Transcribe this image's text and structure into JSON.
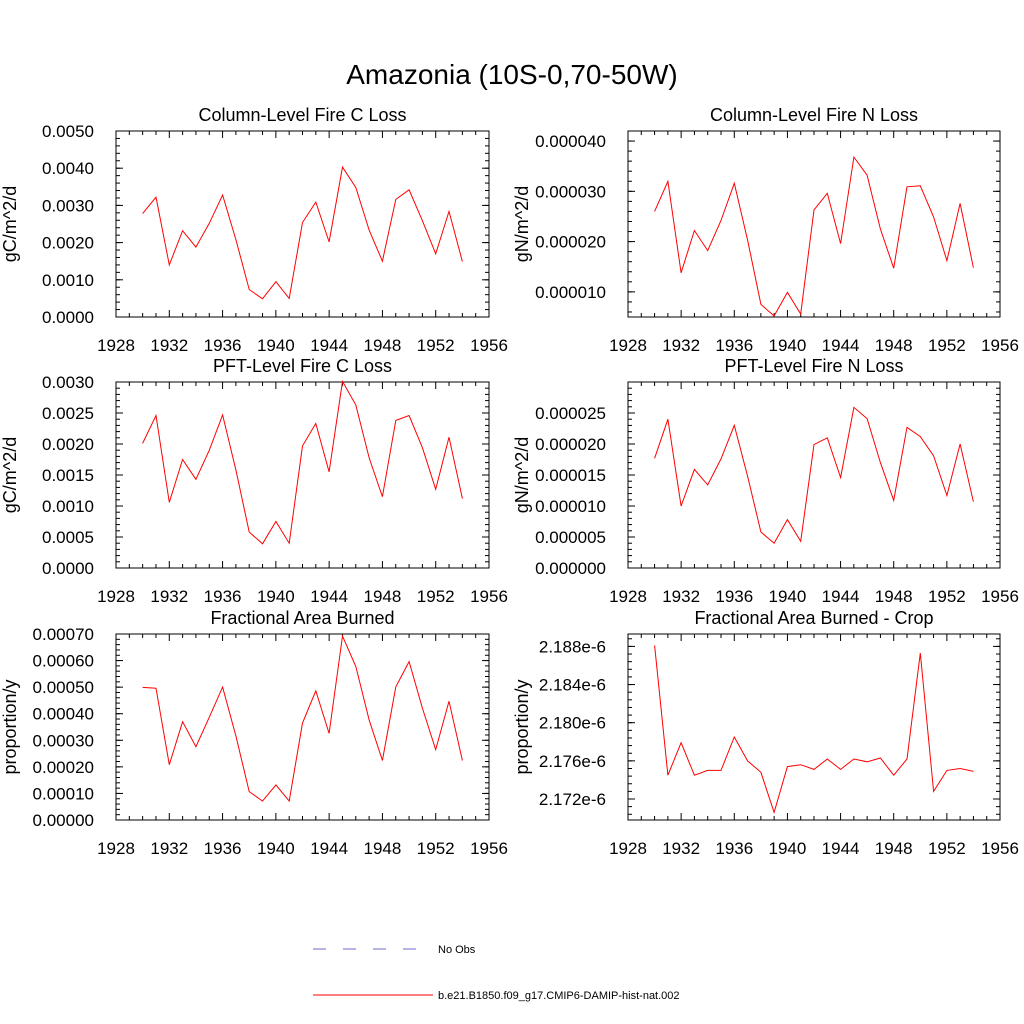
{
  "figure_title": "Amazonia (10S-0,70-50W)",
  "legend": [
    {
      "label": "No Obs",
      "color": "#6a6acd",
      "dash": true
    },
    {
      "label": "b.e21.B1850.f09_g17.CMIP6-DAMIP-hist-nat.002",
      "color": "#ff0000",
      "dash": false
    }
  ],
  "chart_data": [
    {
      "type": "line",
      "title": "Column-Level Fire C Loss",
      "ylabel": "gC/m^2/d",
      "xlim": [
        1928,
        1956
      ],
      "xticks": [
        1928,
        1932,
        1936,
        1940,
        1944,
        1948,
        1952,
        1956
      ],
      "ylim": [
        0,
        0.005
      ],
      "yticks": [
        "0.0000",
        "0.0010",
        "0.0020",
        "0.0030",
        "0.0040",
        "0.0050"
      ],
      "ytick_values": [
        0,
        0.001,
        0.002,
        0.003,
        0.004,
        0.005
      ],
      "series": [
        {
          "color": "#ff0000",
          "x": [
            1930,
            1931,
            1932,
            1933,
            1934,
            1935,
            1936,
            1937,
            1938,
            1939,
            1940,
            1941,
            1942,
            1943,
            1944,
            1945,
            1946,
            1947,
            1948,
            1949,
            1950,
            1951,
            1952,
            1953,
            1954
          ],
          "values": [
            0.00278,
            0.00322,
            0.0014,
            0.00232,
            0.00188,
            0.00252,
            0.00328,
            0.00208,
            0.00074,
            0.00049,
            0.00095,
            0.0005,
            0.00254,
            0.00309,
            0.00202,
            0.00403,
            0.00348,
            0.00234,
            0.0015,
            0.00316,
            0.00342,
            0.00259,
            0.0017,
            0.00284,
            0.00149
          ]
        }
      ]
    },
    {
      "type": "line",
      "title": "Column-Level Fire N Loss",
      "ylabel": "gN/m^2/d",
      "xlim": [
        1928,
        1956
      ],
      "xticks": [
        1928,
        1932,
        1936,
        1940,
        1944,
        1948,
        1952,
        1956
      ],
      "ylim": [
        5e-06,
        4.2e-05
      ],
      "yticks": [
        "0.000010",
        "0.000020",
        "0.000030",
        "0.000040"
      ],
      "ytick_values": [
        1e-05,
        2e-05,
        3e-05,
        4e-05
      ],
      "series": [
        {
          "color": "#ff0000",
          "x": [
            1930,
            1931,
            1932,
            1933,
            1934,
            1935,
            1936,
            1937,
            1938,
            1939,
            1940,
            1941,
            1942,
            1943,
            1944,
            1945,
            1946,
            1947,
            1948,
            1949,
            1950,
            1951,
            1952,
            1953,
            1954
          ],
          "values": [
            2.6e-05,
            3.2e-05,
            1.38e-05,
            2.22e-05,
            1.82e-05,
            2.42e-05,
            3.16e-05,
            2.03e-05,
            7.5e-06,
            5.2e-06,
            9.9e-06,
            5.6e-06,
            2.63e-05,
            2.96e-05,
            1.96e-05,
            3.68e-05,
            3.32e-05,
            2.25e-05,
            1.47e-05,
            3.09e-05,
            3.11e-05,
            2.49e-05,
            1.62e-05,
            2.76e-05,
            1.48e-05
          ]
        }
      ]
    },
    {
      "type": "line",
      "title": "PFT-Level Fire C Loss",
      "ylabel": "gC/m^2/d",
      "xlim": [
        1928,
        1956
      ],
      "xticks": [
        1928,
        1932,
        1936,
        1940,
        1944,
        1948,
        1952,
        1956
      ],
      "ylim": [
        0,
        0.003
      ],
      "yticks": [
        "0.0000",
        "0.0005",
        "0.0010",
        "0.0015",
        "0.0020",
        "0.0025",
        "0.0030"
      ],
      "ytick_values": [
        0,
        0.0005,
        0.001,
        0.0015,
        0.002,
        0.0025,
        0.003
      ],
      "series": [
        {
          "color": "#ff0000",
          "x": [
            1930,
            1931,
            1932,
            1933,
            1934,
            1935,
            1936,
            1937,
            1938,
            1939,
            1940,
            1941,
            1942,
            1943,
            1944,
            1945,
            1946,
            1947,
            1948,
            1949,
            1950,
            1951,
            1952,
            1953,
            1954
          ],
          "values": [
            0.00201,
            0.00246,
            0.00106,
            0.00175,
            0.00143,
            0.0019,
            0.00247,
            0.00158,
            0.00058,
            0.00039,
            0.00075,
            0.0004,
            0.00197,
            0.00233,
            0.00155,
            0.00301,
            0.00263,
            0.00178,
            0.00115,
            0.00238,
            0.00246,
            0.00194,
            0.00127,
            0.00211,
            0.00112
          ]
        }
      ]
    },
    {
      "type": "line",
      "title": "PFT-Level Fire N Loss",
      "ylabel": "gN/m^2/d",
      "xlim": [
        1928,
        1956
      ],
      "xticks": [
        1928,
        1932,
        1936,
        1940,
        1944,
        1948,
        1952,
        1956
      ],
      "ylim": [
        0,
        3e-05
      ],
      "yticks": [
        "0.000000",
        "0.000005",
        "0.000010",
        "0.000015",
        "0.000020",
        "0.000025"
      ],
      "ytick_values": [
        0,
        5e-06,
        1e-05,
        1.5e-05,
        2e-05,
        2.5e-05
      ],
      "series": [
        {
          "color": "#ff0000",
          "x": [
            1930,
            1931,
            1932,
            1933,
            1934,
            1935,
            1936,
            1937,
            1938,
            1939,
            1940,
            1941,
            1942,
            1943,
            1944,
            1945,
            1946,
            1947,
            1948,
            1949,
            1950,
            1951,
            1952,
            1953,
            1954
          ],
          "values": [
            1.77e-05,
            2.4e-05,
            1e-05,
            1.59e-05,
            1.34e-05,
            1.76e-05,
            2.3e-05,
            1.48e-05,
            5.8e-06,
            4e-06,
            7.8e-06,
            4.3e-06,
            1.99e-05,
            2.1e-05,
            1.46e-05,
            2.59e-05,
            2.41e-05,
            1.7e-05,
            1.09e-05,
            2.27e-05,
            2.12e-05,
            1.81e-05,
            1.17e-05,
            2e-05,
            1.07e-05
          ]
        }
      ]
    },
    {
      "type": "line",
      "title": "Fractional Area Burned",
      "ylabel": "proportion/y",
      "xlim": [
        1928,
        1956
      ],
      "xticks": [
        1928,
        1932,
        1936,
        1940,
        1944,
        1948,
        1952,
        1956
      ],
      "ylim": [
        0,
        0.0007
      ],
      "yticks": [
        "0.00000",
        "0.00010",
        "0.00020",
        "0.00030",
        "0.00040",
        "0.00050",
        "0.00060",
        "0.00070"
      ],
      "ytick_values": [
        0,
        0.0001,
        0.0002,
        0.0003,
        0.0004,
        0.0005,
        0.0006,
        0.0007
      ],
      "series": [
        {
          "color": "#ff0000",
          "x": [
            1930,
            1931,
            1932,
            1933,
            1934,
            1935,
            1936,
            1937,
            1938,
            1939,
            1940,
            1941,
            1942,
            1943,
            1944,
            1945,
            1946,
            1947,
            1948,
            1949,
            1950,
            1951,
            1952,
            1953,
            1954
          ],
          "values": [
            0.000499,
            0.000496,
            0.000208,
            0.00037,
            0.000276,
            0.000387,
            0.0005,
            0.000316,
            0.000107,
            7.1e-05,
            0.000132,
            7.1e-05,
            0.000365,
            0.000486,
            0.000326,
            0.000692,
            0.000578,
            0.000377,
            0.000224,
            0.000501,
            0.000596,
            0.000421,
            0.000265,
            0.000447,
            0.000224
          ]
        }
      ]
    },
    {
      "type": "line",
      "title": "Fractional Area Burned - Crop",
      "ylabel": "proportion/y",
      "xlim": [
        1928,
        1956
      ],
      "xticks": [
        1928,
        1932,
        1936,
        1940,
        1944,
        1948,
        1952,
        1956
      ],
      "ylim": [
        2.1698e-06,
        2.1893e-06
      ],
      "yticks": [
        "2.172e-6",
        "2.176e-6",
        "2.180e-6",
        "2.184e-6",
        "2.188e-6"
      ],
      "ytick_values": [
        2.172e-06,
        2.176e-06,
        2.18e-06,
        2.184e-06,
        2.188e-06
      ],
      "series": [
        {
          "color": "#ff0000",
          "x": [
            1930,
            1931,
            1932,
            1933,
            1934,
            1935,
            1936,
            1937,
            1938,
            1939,
            1940,
            1941,
            1942,
            1943,
            1944,
            1945,
            1946,
            1947,
            1948,
            1949,
            1950,
            1951,
            1952,
            1953,
            1954
          ],
          "values": [
            2.1881e-06,
            2.1745e-06,
            2.1779e-06,
            2.1745e-06,
            2.175e-06,
            2.175e-06,
            2.1785e-06,
            2.176e-06,
            2.1748e-06,
            2.1706e-06,
            2.1754e-06,
            2.1756e-06,
            2.1751e-06,
            2.1762e-06,
            2.1751e-06,
            2.1762e-06,
            2.1759e-06,
            2.1763e-06,
            2.1745e-06,
            2.1762e-06,
            2.1873e-06,
            2.1728e-06,
            2.175e-06,
            2.1752e-06,
            2.1749e-06
          ]
        }
      ]
    }
  ]
}
